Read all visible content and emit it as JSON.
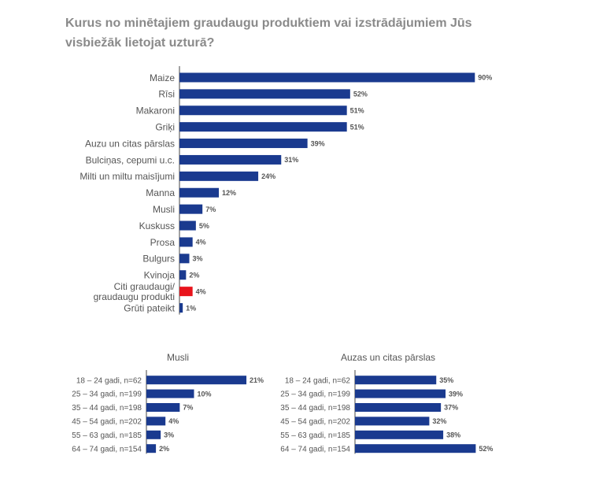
{
  "title": "Kurus no minētajiem graudaugu produktiem vai izstrādājumiem Jūs visbiežāk lietojat uzturā?",
  "colors": {
    "bar": "#1a3a8f",
    "highlight": "#e8141c",
    "label": "#555555",
    "axis": "#444444"
  },
  "chart_data": [
    {
      "type": "bar",
      "orientation": "horizontal",
      "title": "",
      "categories": [
        "Maize",
        "Rīsi",
        "Makaroni",
        "Griķi",
        "Auzu un citas pārslas",
        "Bulciņas, cepumi u.c.",
        "Milti un miltu maisījumi",
        "Manna",
        "Musli",
        "Kuskuss",
        "Prosa",
        "Bulgurs",
        "Kvinoja",
        "Citi graudaugi/\ngraudaugu produkti",
        "Grūti pateikt"
      ],
      "values": [
        90,
        52,
        51,
        51,
        39,
        31,
        24,
        12,
        7,
        5,
        4,
        3,
        2,
        4,
        1
      ],
      "value_labels": [
        "90%",
        "52%",
        "51%",
        "51%",
        "39%",
        "31%",
        "24%",
        "12%",
        "7%",
        "5%",
        "4%",
        "3%",
        "2%",
        "4%",
        "1%"
      ],
      "highlight": [
        13
      ],
      "unit": "%"
    },
    {
      "type": "bar",
      "orientation": "horizontal",
      "title": "Musli",
      "categories": [
        "18 – 24 gadi, n=62",
        "25 – 34 gadi, n=199",
        "35 – 44 gadi, n=198",
        "45 – 54 gadi, n=202",
        "55 – 63 gadi, n=185",
        "64 – 74 gadi, n=154"
      ],
      "values": [
        21,
        10,
        7,
        4,
        3,
        2
      ],
      "value_labels": [
        "21%",
        "10%",
        "7%",
        "4%",
        "3%",
        "2%"
      ],
      "unit": "%"
    },
    {
      "type": "bar",
      "orientation": "horizontal",
      "title": "Auzas un citas pārslas",
      "categories": [
        "18 – 24 gadi, n=62",
        "25 – 34 gadi, n=199",
        "35 – 44 gadi, n=198",
        "45 – 54 gadi, n=202",
        "55 – 63 gadi, n=185",
        "64 – 74 gadi, n=154"
      ],
      "values": [
        35,
        39,
        37,
        32,
        38,
        52
      ],
      "value_labels": [
        "35%",
        "39%",
        "37%",
        "32%",
        "38%",
        "52%"
      ],
      "unit": "%"
    }
  ]
}
